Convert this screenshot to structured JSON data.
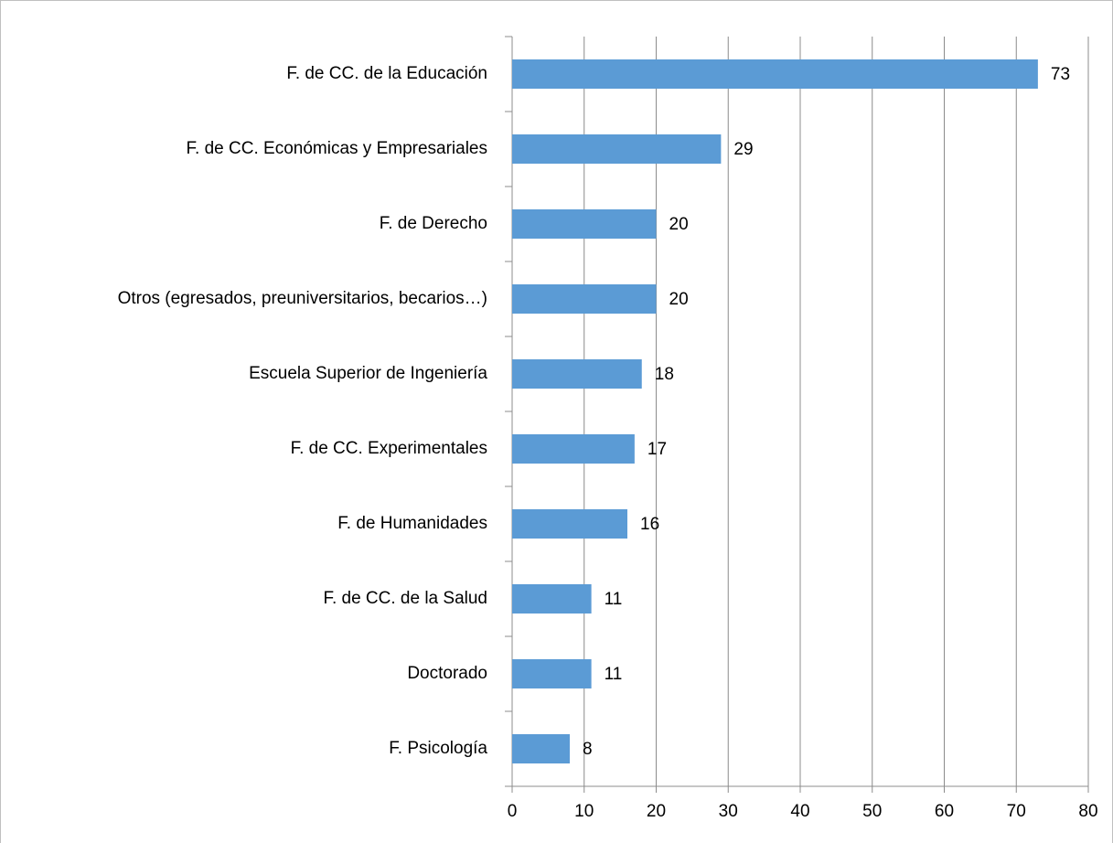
{
  "chart_data": {
    "type": "bar",
    "orientation": "horizontal",
    "categories": [
      "F. de CC. de la Educación",
      "F. de CC. Económicas y Empresariales",
      "F. de Derecho",
      "Otros (egresados, preuniversitarios, becarios…)",
      "Escuela Superior de Ingeniería",
      "F. de CC. Experimentales",
      "F. de Humanidades",
      "F. de CC. de la Salud",
      "Doctorado",
      "F. Psicología"
    ],
    "values": [
      73,
      29,
      20,
      20,
      18,
      17,
      16,
      11,
      11,
      8
    ],
    "color": "#5b9bd5",
    "xlim": [
      0,
      80
    ],
    "xticks": [
      0,
      10,
      20,
      30,
      40,
      50,
      60,
      70,
      80
    ],
    "grid": true
  }
}
